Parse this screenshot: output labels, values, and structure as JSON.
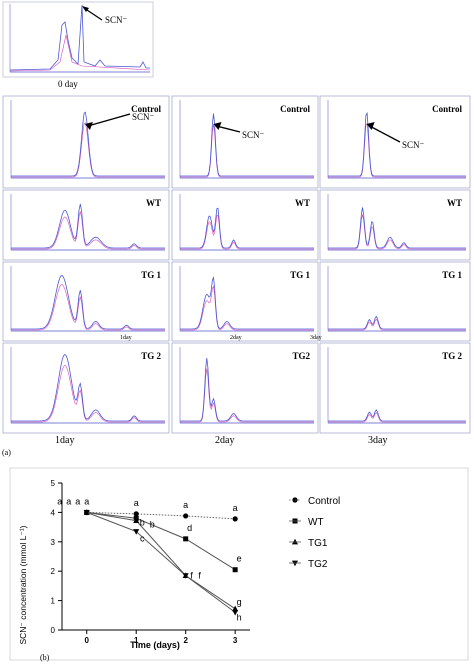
{
  "figure": {
    "panel_a_label": "(a)",
    "panel_b_label": "(b)",
    "day0": {
      "label": "0 day",
      "annotation": "SCN⁻"
    },
    "rows": [
      {
        "name": "Control",
        "annotations": [
          "SCN⁻",
          "SCN⁻",
          "SCN⁻"
        ]
      },
      {
        "name": "WT",
        "annotations": [
          "",
          "",
          ""
        ]
      },
      {
        "name": "TG 1",
        "axis_labels": [
          "1day",
          "2day",
          "3day"
        ]
      },
      {
        "name": "TG 2"
      }
    ],
    "row_labels_per_col": [
      [
        "Control",
        "Control",
        "Control"
      ],
      [
        "WT",
        "WT",
        "WT"
      ],
      [
        "TG 1",
        "TG 1",
        "TG 1"
      ],
      [
        "TG 2",
        "TG2",
        "TG 2"
      ]
    ],
    "column_labels": [
      "1day",
      "2day",
      "3day"
    ]
  },
  "chart_data": {
    "type": "line",
    "xlabel": "Time (days)",
    "ylabel": "SCN⁻ concentration (mmol L⁻¹)",
    "xlim": [
      -0.5,
      3.3
    ],
    "ylim": [
      0,
      5
    ],
    "x_ticks": [
      0,
      1,
      2,
      3
    ],
    "y_ticks": [
      0,
      1,
      2,
      3,
      4,
      5
    ],
    "legend_position": "right",
    "series": [
      {
        "name": "Control",
        "marker": "circle",
        "line": "dotted",
        "x": [
          0,
          1,
          2,
          3
        ],
        "y": [
          4.0,
          3.95,
          3.88,
          3.78
        ],
        "labels": [
          "a",
          "a",
          "a",
          "a"
        ]
      },
      {
        "name": "WT",
        "marker": "square",
        "line": "solid",
        "x": [
          0,
          1,
          2,
          3
        ],
        "y": [
          4.0,
          3.8,
          3.1,
          2.05
        ],
        "labels": [
          "a",
          "b",
          "d",
          "e"
        ]
      },
      {
        "name": "TG1",
        "marker": "triangle-up",
        "line": "solid",
        "x": [
          0,
          1,
          2,
          3
        ],
        "y": [
          4.0,
          3.72,
          1.85,
          0.72
        ],
        "labels": [
          "a",
          "b",
          "f",
          "g"
        ]
      },
      {
        "name": "TG2",
        "marker": "triangle-down",
        "line": "solid",
        "x": [
          0,
          1,
          2,
          3
        ],
        "y": [
          4.0,
          3.35,
          1.85,
          0.6
        ],
        "labels": [
          "a",
          "c",
          "f",
          "h"
        ]
      }
    ]
  }
}
